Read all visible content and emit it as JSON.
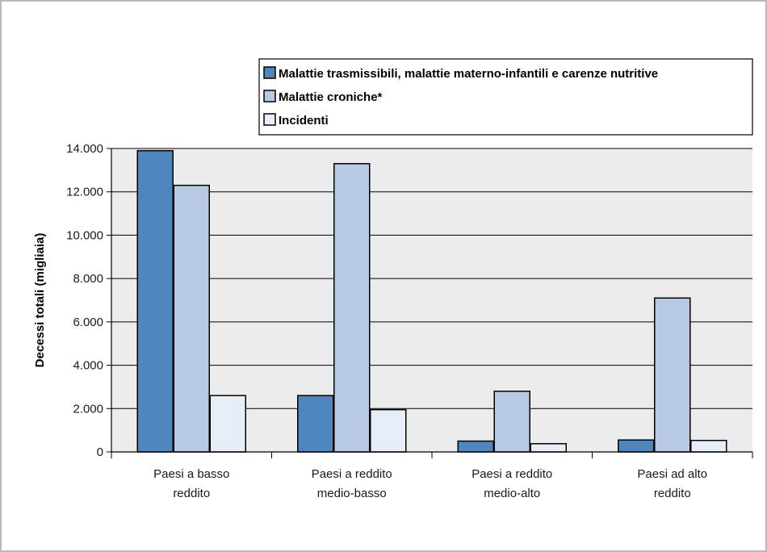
{
  "chart_data": {
    "type": "bar",
    "categories": [
      [
        "Paesi a basso",
        "reddito"
      ],
      [
        "Paesi a reddito",
        "medio-basso"
      ],
      [
        "Paesi a reddito",
        "medio-alto"
      ],
      [
        "Paesi ad alto",
        "reddito"
      ]
    ],
    "series": [
      {
        "name": "Malattie trasmissibili, malattie materno-infantili e carenze nutritive",
        "color": "#4f86be",
        "values": [
          13900,
          2600,
          500,
          550
        ]
      },
      {
        "name": "Malattie croniche*",
        "color": "#b7c9e3",
        "values": [
          12300,
          13300,
          2800,
          7100
        ]
      },
      {
        "name": "Incidenti",
        "color": "#e8eef8",
        "values": [
          2600,
          1950,
          380,
          530
        ]
      }
    ],
    "ylabel": "Decessi totali (migliaia)",
    "yticks": [
      "0",
      "2.000",
      "4.000",
      "6.000",
      "8.000",
      "10.000",
      "12.000",
      "14.000"
    ],
    "ylim": [
      0,
      14000
    ],
    "grid": true,
    "legend_position": "top-right",
    "plot_background": "#ececec"
  }
}
